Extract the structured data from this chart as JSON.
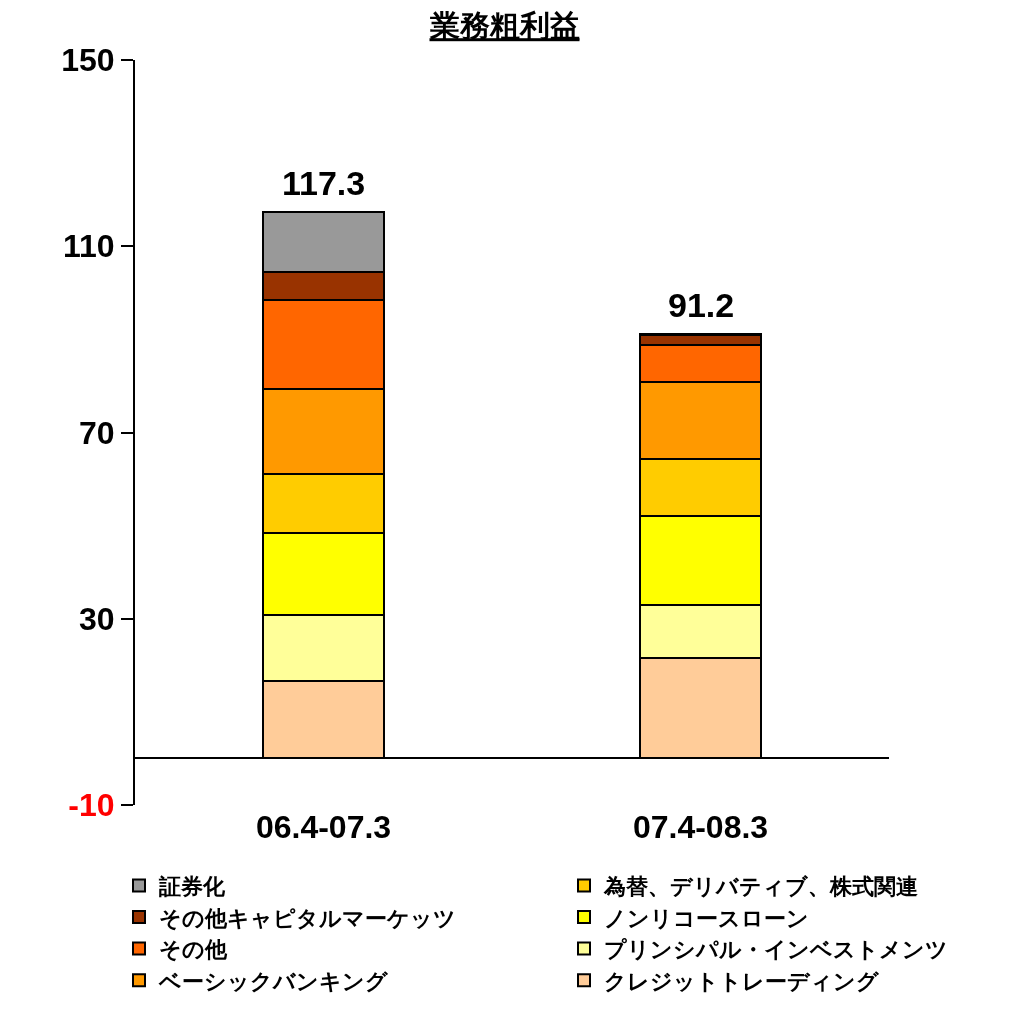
{
  "chart_data": {
    "type": "bar",
    "title": "業務粗利益",
    "stacked": true,
    "categories": [
      "06.4-07.3",
      "07.4-08.3"
    ],
    "series": [
      {
        "name": "クレジットトレーディング",
        "color": "#ffcc99",
        "values": [
          16.6,
          21.5
        ]
      },
      {
        "name": "プリンシパル・インベストメンツ",
        "color": "#ffff99",
        "values": [
          14.3,
          11.4
        ]
      },
      {
        "name": "ノンリコースローン",
        "color": "#ffff00",
        "values": [
          17.6,
          19.2
        ]
      },
      {
        "name": "為替、デリバティブ、株式関連",
        "color": "#ffcc00",
        "values": [
          12.6,
          12.3
        ]
      },
      {
        "name": "ベーシックバンキング",
        "color": "#ff9900",
        "values": [
          18.2,
          16.4
        ]
      },
      {
        "name": "その他",
        "color": "#ff6600",
        "values": [
          19.1,
          7.9
        ]
      },
      {
        "name": "その他キャピタルマーケッツ",
        "color": "#993300",
        "values": [
          6.1,
          2.2
        ]
      },
      {
        "name": "証券化",
        "color": "#999999",
        "values": [
          12.8,
          0.3
        ]
      }
    ],
    "totals": [
      "117.3",
      "91.2"
    ],
    "ylim": [
      -10,
      150
    ],
    "yticks": [
      {
        "value": -10,
        "label": "-10"
      },
      30,
      70,
      110,
      150
    ],
    "grid": false,
    "legend": "bottom"
  }
}
